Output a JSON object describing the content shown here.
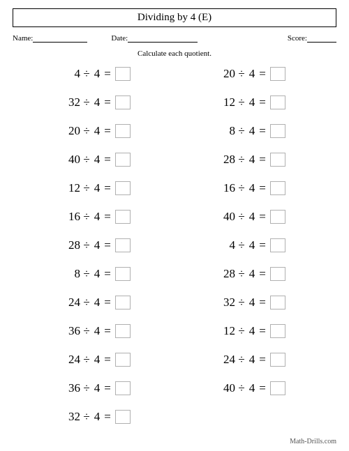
{
  "title": "Dividing by 4 (E)",
  "fields": {
    "name_label": "Name:",
    "date_label": "Date:",
    "score_label": "Score:"
  },
  "instruction": "Calculate each quotient.",
  "operator": "÷",
  "equals": "=",
  "divisor": "4",
  "left_column": [
    {
      "dividend": "4"
    },
    {
      "dividend": "32"
    },
    {
      "dividend": "20"
    },
    {
      "dividend": "40"
    },
    {
      "dividend": "12"
    },
    {
      "dividend": "16"
    },
    {
      "dividend": "28"
    },
    {
      "dividend": "8"
    },
    {
      "dividend": "24"
    },
    {
      "dividend": "36"
    },
    {
      "dividend": "24"
    },
    {
      "dividend": "36"
    },
    {
      "dividend": "32"
    }
  ],
  "right_column": [
    {
      "dividend": "20"
    },
    {
      "dividend": "12"
    },
    {
      "dividend": "8"
    },
    {
      "dividend": "28"
    },
    {
      "dividend": "16"
    },
    {
      "dividend": "40"
    },
    {
      "dividend": "4"
    },
    {
      "dividend": "28"
    },
    {
      "dividend": "32"
    },
    {
      "dividend": "12"
    },
    {
      "dividend": "24"
    },
    {
      "dividend": "40"
    }
  ],
  "footer": "Math-Drills.com",
  "styling": {
    "page_bg": "#ffffff",
    "text_color": "#000000",
    "box_border_color": "#b0b0b0",
    "title_fontsize": 15,
    "problem_fontsize": 17,
    "label_fontsize": 11,
    "line_widths": {
      "name": 78,
      "date": 100,
      "score": 42
    }
  }
}
